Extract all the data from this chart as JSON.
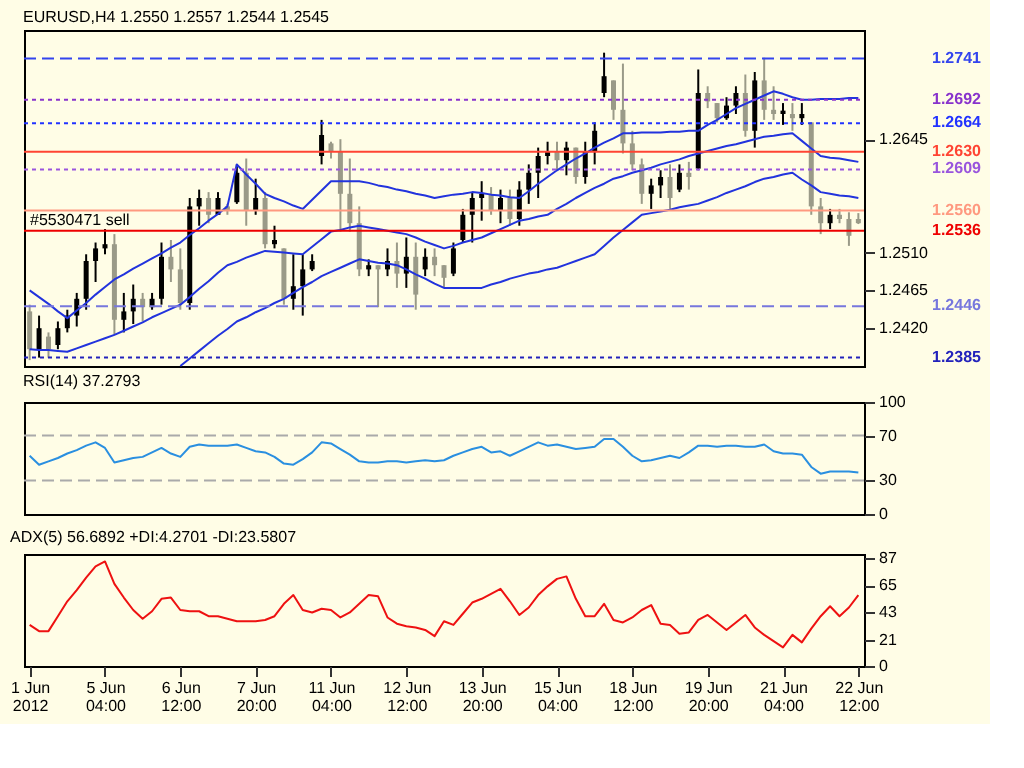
{
  "chart_data": [
    {
      "type": "candlestick",
      "title": "EURUSD,H4 1.2550 1.2557 1.2544 1.2545",
      "ohlc": [
        [
          1.244,
          1.2448,
          1.2382,
          1.2395
        ],
        [
          1.2395,
          1.2435,
          1.2385,
          1.242
        ],
        [
          1.241,
          1.2415,
          1.2385,
          1.2395
        ],
        [
          1.24,
          1.2428,
          1.2395,
          1.242
        ],
        [
          1.242,
          1.2442,
          1.2415,
          1.2435
        ],
        [
          1.2435,
          1.2462,
          1.2422,
          1.2455
        ],
        [
          1.2455,
          1.2508,
          1.2442,
          1.25
        ],
        [
          1.25,
          1.2522,
          1.2475,
          1.2515
        ],
        [
          1.2515,
          1.2538,
          1.2508,
          1.252
        ],
        [
          1.252,
          1.2532,
          1.2412,
          1.243
        ],
        [
          1.243,
          1.2462,
          1.2415,
          1.244
        ],
        [
          1.244,
          1.2472,
          1.2425,
          1.2455
        ],
        [
          1.2455,
          1.2462,
          1.2428,
          1.2445
        ],
        [
          1.2445,
          1.2462,
          1.2442,
          1.2455
        ],
        [
          1.2455,
          1.2522,
          1.2448,
          1.2505
        ],
        [
          1.2505,
          1.2525,
          1.2475,
          1.249
        ],
        [
          1.249,
          1.2515,
          1.2442,
          1.245
        ],
        [
          1.245,
          1.2575,
          1.2442,
          1.2565
        ],
        [
          1.2565,
          1.2585,
          1.2542,
          1.2575
        ],
        [
          1.2575,
          1.2582,
          1.2545,
          1.2555
        ],
        [
          1.2555,
          1.2582,
          1.2555,
          1.2575
        ],
        [
          1.2565,
          1.2568,
          1.2555,
          1.256
        ],
        [
          1.257,
          1.2615,
          1.2568,
          1.2605
        ],
        [
          1.2605,
          1.2622,
          1.2542,
          1.256
        ],
        [
          1.256,
          1.2598,
          1.2555,
          1.2575
        ],
        [
          1.2575,
          1.2582,
          1.2515,
          1.252
        ],
        [
          1.252,
          1.2542,
          1.2515,
          1.2525
        ],
        [
          1.2515,
          1.2515,
          1.2448,
          1.2455
        ],
        [
          1.2455,
          1.2508,
          1.2442,
          1.247
        ],
        [
          1.247,
          1.2508,
          1.2435,
          1.249
        ],
        [
          1.249,
          1.2508,
          1.2488,
          1.25
        ],
        [
          1.2625,
          1.2668,
          1.2615,
          1.265
        ],
        [
          1.264,
          1.2642,
          1.2622,
          1.263
        ],
        [
          1.263,
          1.2645,
          1.2535,
          1.258
        ],
        [
          1.258,
          1.2622,
          1.2535,
          1.2545
        ],
        [
          1.2545,
          1.2565,
          1.2482,
          1.249
        ],
        [
          1.249,
          1.2502,
          1.2482,
          1.2495
        ],
        [
          1.2495,
          1.2495,
          1.2445,
          1.249
        ],
        [
          1.249,
          1.2515,
          1.2482,
          1.25
        ],
        [
          1.25,
          1.2522,
          1.2468,
          1.2485
        ],
        [
          1.2485,
          1.2528,
          1.2468,
          1.2505
        ],
        [
          1.2505,
          1.2522,
          1.2442,
          1.246
        ],
        [
          1.249,
          1.2515,
          1.2482,
          1.2505
        ],
        [
          1.2505,
          1.2515,
          1.2482,
          1.2495
        ],
        [
          1.2495,
          1.2495,
          1.2468,
          1.248
        ],
        [
          1.2485,
          1.2522,
          1.2482,
          1.2515
        ],
        [
          1.2525,
          1.2562,
          1.2522,
          1.2555
        ],
        [
          1.2555,
          1.2582,
          1.2522,
          1.2575
        ],
        [
          1.2575,
          1.2595,
          1.2548,
          1.258
        ],
        [
          1.258,
          1.2588,
          1.2555,
          1.256
        ],
        [
          1.256,
          1.2585,
          1.2545,
          1.2575
        ],
        [
          1.2575,
          1.2585,
          1.2542,
          1.255
        ],
        [
          1.255,
          1.2595,
          1.2542,
          1.2585
        ],
        [
          1.2585,
          1.2615,
          1.2568,
          1.2605
        ],
        [
          1.2605,
          1.2635,
          1.2575,
          1.2625
        ],
        [
          1.2625,
          1.2642,
          1.2615,
          1.263
        ],
        [
          1.263,
          1.2642,
          1.2608,
          1.262
        ],
        [
          1.262,
          1.2642,
          1.2602,
          1.2635
        ],
        [
          1.2635,
          1.2635,
          1.2592,
          1.26
        ],
        [
          1.26,
          1.2642,
          1.2592,
          1.263
        ],
        [
          1.263,
          1.2665,
          1.2615,
          1.2655
        ],
        [
          1.27,
          1.2748,
          1.2695,
          1.272
        ],
        [
          1.2715,
          1.2715,
          1.2668,
          1.268
        ],
        [
          1.268,
          1.2735,
          1.2628,
          1.264
        ],
        [
          1.264,
          1.2655,
          1.2608,
          1.2615
        ],
        [
          1.2615,
          1.2622,
          1.2568,
          1.258
        ],
        [
          1.258,
          1.2598,
          1.2562,
          1.259
        ],
        [
          1.259,
          1.2608,
          1.2575,
          1.26
        ],
        [
          1.26,
          1.2615,
          1.2562,
          1.2575
        ],
        [
          1.2585,
          1.2615,
          1.2582,
          1.2605
        ],
        [
          1.2605,
          1.2618,
          1.2585,
          1.26
        ],
        [
          1.261,
          1.2728,
          1.2608,
          1.27
        ],
        [
          1.27,
          1.2708,
          1.2682,
          1.269
        ],
        [
          1.2688,
          1.2688,
          1.2665,
          1.267
        ],
        [
          1.267,
          1.2695,
          1.2668,
          1.2685
        ],
        [
          1.2685,
          1.2708,
          1.2675,
          1.27
        ],
        [
          1.27,
          1.2722,
          1.2648,
          1.2655
        ],
        [
          1.2655,
          1.2725,
          1.2635,
          1.2715
        ],
        [
          1.2715,
          1.2742,
          1.2668,
          1.268
        ],
        [
          1.268,
          1.2708,
          1.2668,
          1.2675
        ],
        [
          1.2675,
          1.2688,
          1.2662,
          1.2679
        ],
        [
          1.2675,
          1.2688,
          1.2655,
          1.267
        ],
        [
          1.267,
          1.2688,
          1.2662,
          1.2675
        ],
        [
          1.2665,
          1.2665,
          1.2555,
          1.2565
        ],
        [
          1.2565,
          1.2575,
          1.2532,
          1.2545
        ],
        [
          1.2545,
          1.2562,
          1.2538,
          1.2555
        ],
        [
          1.2555,
          1.2562,
          1.2545,
          1.255
        ],
        [
          1.255,
          1.2558,
          1.2518,
          1.253
        ],
        [
          1.255,
          1.2557,
          1.2544,
          1.2545
        ]
      ],
      "series": [
        {
          "type": "line",
          "color": "#2233dd",
          "values": [
            1.2465,
            1.2457,
            1.2449,
            1.244,
            1.2432,
            1.2441,
            1.245,
            1.246,
            1.2469,
            1.2478,
            1.2484,
            1.2491,
            1.2497,
            1.2503,
            1.2509,
            1.2516,
            1.2522,
            1.2531,
            1.2539,
            1.2548,
            1.2556,
            1.2565,
            1.2615,
            1.2603,
            1.2592,
            1.258,
            1.2575,
            1.2571,
            1.2566,
            1.2562,
            1.2573,
            1.2584,
            1.2595,
            1.2595,
            1.2595,
            1.2595,
            1.2593,
            1.259,
            1.2588,
            1.2585,
            1.2583,
            1.258,
            1.2578,
            1.2575,
            1.2577,
            1.2579,
            1.258,
            1.2582,
            1.2581,
            1.2579,
            1.2578,
            1.2576,
            1.2575,
            1.2583,
            1.2592,
            1.26,
            1.2608,
            1.2615,
            1.2622,
            1.2628,
            1.2635,
            1.2641,
            1.2646,
            1.2652,
            1.2652,
            1.2653,
            1.2653,
            1.2653,
            1.2654,
            1.2654,
            1.2655,
            1.2655,
            1.2662,
            1.2668,
            1.2675,
            1.2682,
            1.2687,
            1.2692,
            1.2697,
            1.2702,
            1.2699,
            1.2695,
            1.2692,
            1.2692,
            1.2693,
            1.2693,
            1.2693,
            1.2694,
            1.2694
          ]
        },
        {
          "type": "line",
          "color": "#2233dd",
          "values": [
            1.2395,
            1.2394,
            1.2394,
            1.2393,
            1.2392,
            1.2396,
            1.24,
            1.2404,
            1.2408,
            1.2412,
            1.2417,
            1.2422,
            1.2427,
            1.2433,
            1.2438,
            1.2443,
            1.2448,
            1.2457,
            1.2467,
            1.2476,
            1.2486,
            1.2495,
            1.2499,
            1.2504,
            1.2508,
            1.2512,
            1.2511,
            1.251,
            1.2509,
            1.2508,
            1.2517,
            1.2526,
            1.2535,
            1.2537,
            1.254,
            1.2542,
            1.254,
            1.2538,
            1.2536,
            1.2534,
            1.2532,
            1.2528,
            1.2523,
            1.2519,
            1.2515,
            1.2518,
            1.2522,
            1.2525,
            1.2528,
            1.2533,
            1.2538,
            1.2543,
            1.2548,
            1.255,
            1.2553,
            1.2555,
            1.2562,
            1.2568,
            1.2575,
            1.2581,
            1.2587,
            1.2592,
            1.2598,
            1.2601,
            1.2605,
            1.2608,
            1.2611,
            1.2615,
            1.2618,
            1.2621,
            1.2625,
            1.2628,
            1.2631,
            1.2634,
            1.2637,
            1.2639,
            1.2642,
            1.2645,
            1.2648,
            1.2649,
            1.2651,
            1.2652,
            1.2643,
            1.2634,
            1.2625,
            1.2623,
            1.2622,
            1.262,
            1.2618
          ]
        },
        {
          "type": "line",
          "color": "#2233dd",
          "values": [
            null,
            null,
            null,
            null,
            null,
            null,
            null,
            null,
            null,
            null,
            null,
            null,
            null,
            null,
            null,
            null,
            1.2375,
            1.2384,
            1.2393,
            1.2402,
            1.2411,
            1.2419,
            1.2428,
            1.2433,
            1.2439,
            1.2444,
            1.245,
            1.2455,
            1.2462,
            1.2469,
            1.2475,
            1.2482,
            1.2487,
            1.2492,
            1.2497,
            1.2502,
            1.25,
            1.2498,
            1.2497,
            1.2495,
            1.249,
            1.2484,
            1.2479,
            1.2473,
            1.2468,
            1.2468,
            1.2468,
            1.2468,
            1.2468,
            1.2472,
            1.2475,
            1.2479,
            1.2482,
            1.2485,
            1.2487,
            1.249,
            1.2492,
            1.2496,
            1.25,
            1.2504,
            1.2508,
            1.2518,
            1.2528,
            1.2537,
            1.2546,
            1.2555,
            1.2557,
            1.2559,
            1.2561,
            1.2564,
            1.2566,
            1.2568,
            1.2572,
            1.2576,
            1.2581,
            1.2585,
            1.2589,
            1.2594,
            1.2598,
            1.26,
            1.2603,
            1.2605,
            1.2597,
            1.259,
            1.2582,
            1.258,
            1.2578,
            1.2577,
            1.2575
          ]
        }
      ],
      "ylim": [
        1.2375,
        1.2775
      ],
      "yticks": [
        {
          "value": 1.242,
          "label": "1.2420"
        },
        {
          "value": 1.2465,
          "label": "1.2465"
        },
        {
          "value": 1.251,
          "label": "1.2510"
        },
        {
          "value": 1.2645,
          "label": "1.2645"
        }
      ],
      "tick_labels": "y",
      "ref_lines": [
        {
          "axis": "y",
          "value": 1.2741,
          "label": "1.2741",
          "color": "#3344ee",
          "line_style": "dashed"
        },
        {
          "axis": "y",
          "value": 1.2692,
          "label": "1.2692",
          "color": "#8833cc",
          "line_style": "dotted"
        },
        {
          "axis": "y",
          "value": 1.2664,
          "label": "1.2664",
          "color": "#2233ff",
          "line_style": "dotted"
        },
        {
          "axis": "y",
          "value": 1.263,
          "label": "1.2630",
          "color": "#ff4433",
          "line_style": "solid"
        },
        {
          "axis": "y",
          "value": 1.2609,
          "label": "1.2609",
          "color": "#9955dd",
          "line_style": "dotted"
        },
        {
          "axis": "y",
          "value": 1.256,
          "label": "1.2560",
          "color": "#ff9980",
          "line_style": "solid"
        },
        {
          "axis": "y",
          "value": 1.2536,
          "label": "1.2536",
          "color": "#ee0000",
          "line_style": "solid"
        },
        {
          "axis": "y",
          "value": 1.2446,
          "label": "1.2446",
          "color": "#7777dd",
          "line_style": "dashed"
        },
        {
          "axis": "y",
          "value": 1.2385,
          "label": "1.2385",
          "color": "#2222bb",
          "line_style": "dotted"
        }
      ],
      "annotations": [
        {
          "text": "#5530471 sell",
          "y": 1.2536
        }
      ]
    },
    {
      "type": "line",
      "title": "RSI(14) 37.2793",
      "ylim": [
        0,
        100
      ],
      "yticks": [
        0,
        30,
        70,
        100
      ],
      "tick_labels": "y",
      "series": [
        {
          "color": "#2a8fe0",
          "values": [
            52,
            44,
            47,
            50,
            54,
            57,
            61,
            64,
            59,
            46,
            48,
            50,
            51,
            55,
            59,
            54,
            51,
            60,
            62,
            61,
            61,
            61,
            62,
            59,
            56,
            55,
            51,
            45,
            44,
            49,
            55,
            64,
            63,
            58,
            53,
            47,
            46,
            46,
            47,
            47,
            46,
            47,
            48,
            47,
            48,
            52,
            55,
            58,
            60,
            55,
            56,
            52,
            56,
            60,
            64,
            61,
            62,
            60,
            58,
            59,
            60,
            67,
            67,
            60,
            52,
            47,
            48,
            50,
            52,
            50,
            55,
            61,
            61,
            60,
            61,
            61,
            60,
            60,
            62,
            56,
            54,
            54,
            53,
            42,
            36,
            38,
            38,
            38,
            37
          ]
        }
      ],
      "ref_lines": [
        {
          "axis": "y",
          "value": 30,
          "color": "#aaaaaa",
          "line_style": "dashed"
        },
        {
          "axis": "y",
          "value": 70,
          "color": "#aaaaaa",
          "line_style": "dashed"
        }
      ]
    },
    {
      "type": "line",
      "title": "ADX(5) 56.6892 +DI:4.2701 -DI:23.5807",
      "categories": [
        "1 Jun 2012",
        null,
        null,
        null,
        null,
        null,
        null,
        null,
        "5 Jun 04:00",
        null,
        null,
        null,
        null,
        null,
        null,
        null,
        "6 Jun 12:00",
        null,
        null,
        null,
        null,
        null,
        null,
        null,
        "7 Jun 20:00",
        null,
        null,
        null,
        null,
        null,
        null,
        null,
        "11 Jun 04:00",
        null,
        null,
        null,
        null,
        null,
        null,
        null,
        "12 Jun 12:00",
        null,
        null,
        null,
        null,
        null,
        null,
        null,
        "13 Jun 20:00",
        null,
        null,
        null,
        null,
        null,
        null,
        null,
        "15 Jun 04:00",
        null,
        null,
        null,
        null,
        null,
        null,
        null,
        "18 Jun 12:00",
        null,
        null,
        null,
        null,
        null,
        null,
        null,
        "19 Jun 20:00",
        null,
        null,
        null,
        null,
        null,
        null,
        null,
        "21 Jun 04:00",
        null,
        null,
        null,
        null,
        null,
        null,
        null,
        "22 Jun 12:00"
      ],
      "ylim": [
        0,
        90
      ],
      "yticks": [
        0,
        21,
        43,
        65,
        87
      ],
      "series": [
        {
          "color": "#ee1111",
          "values": [
            33,
            28,
            28,
            40,
            52,
            61,
            71,
            80,
            84,
            66,
            55,
            45,
            38,
            44,
            54,
            55,
            45,
            44,
            44,
            40,
            40,
            38,
            36,
            36,
            36,
            37,
            40,
            50,
            57,
            45,
            43,
            46,
            45,
            39,
            43,
            50,
            57,
            56,
            39,
            34,
            32,
            31,
            29,
            24,
            36,
            33,
            42,
            51,
            54,
            58,
            62,
            52,
            41,
            47,
            57,
            64,
            70,
            72,
            54,
            40,
            40,
            50,
            37,
            35,
            39,
            45,
            49,
            34,
            33,
            26,
            27,
            37,
            41,
            35,
            29,
            35,
            41,
            31,
            25,
            20,
            15,
            25,
            19,
            30,
            40,
            48,
            40,
            47,
            57
          ]
        }
      ]
    }
  ]
}
